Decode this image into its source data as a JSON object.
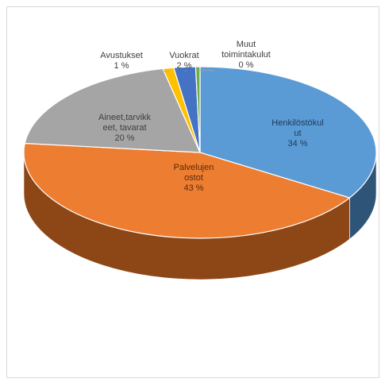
{
  "chart_data": {
    "type": "pie",
    "style": "3d",
    "legend": "none",
    "categories": [
      "Henkilöstökulut",
      "Palvelujen ostot",
      "Aineet,tarvikkeet, tavarat",
      "Avustukset",
      "Vuokrat",
      "Muut toimintakulut"
    ],
    "values": [
      34,
      43,
      20,
      1,
      2,
      0
    ],
    "slices": [
      {
        "label_lines": [
          "Henkilöstökul",
          "ut"
        ],
        "pct": "34 %",
        "value": 34,
        "color": "#5b9bd5",
        "dark": "#2e5578",
        "text_color": "#1f3a5a"
      },
      {
        "label_lines": [
          "Palvelujen",
          "ostot"
        ],
        "pct": "43 %",
        "value": 43,
        "color": "#ed7d31",
        "dark": "#8d4716",
        "text_color": "#5a2a0a"
      },
      {
        "label_lines": [
          "Aineet,tarvikk",
          "eet, tavarat"
        ],
        "pct": "20 %",
        "value": 20,
        "color": "#a5a5a5",
        "dark": "#6b6b6b",
        "text_color": "#404040"
      },
      {
        "label_lines": [
          "Avustukset"
        ],
        "pct": "1 %",
        "value": 1,
        "color": "#ffc000",
        "dark": "#a77d00",
        "text_color": "#404040"
      },
      {
        "label_lines": [
          "Vuokrat"
        ],
        "pct": "2 %",
        "value": 2,
        "color": "#4472c4",
        "dark": "#2b4a80",
        "text_color": "#404040"
      },
      {
        "label_lines": [
          "Muut",
          "toimintakulut"
        ],
        "pct": "0 %",
        "value": 0.4,
        "color": "#70ad47",
        "dark": "#45702b",
        "text_color": "#404040"
      }
    ]
  }
}
